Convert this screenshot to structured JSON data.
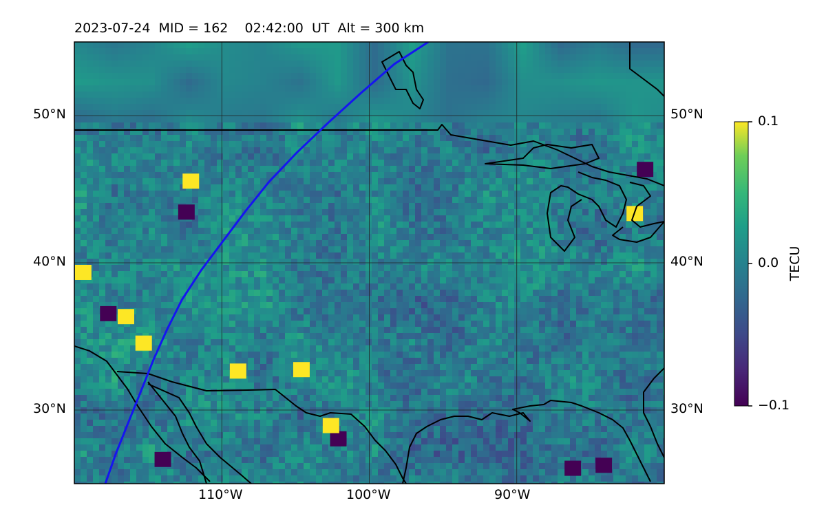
{
  "title": "2023-07-24  MID = 162    02:42:00  UT  Alt = 300 km",
  "map": {
    "projection": "PlateCarree",
    "extent": {
      "lon_min": -120,
      "lon_max": -80,
      "lat_min": 25,
      "lat_max": 55
    },
    "gridlines": true,
    "lat_ticks": [
      {
        "value": 30,
        "label": "30°N"
      },
      {
        "value": 40,
        "label": "40°N"
      },
      {
        "value": 50,
        "label": "50°N"
      }
    ],
    "lon_ticks": [
      {
        "value": -110,
        "label": "110°W"
      },
      {
        "value": -100,
        "label": "100°W"
      },
      {
        "value": -90,
        "label": "90°W"
      }
    ],
    "features": [
      "coastlines",
      "country borders",
      "Great Lakes"
    ],
    "track": {
      "color": "#1515f0",
      "points": [
        [
          -117.9,
          25
        ],
        [
          -117.2,
          27
        ],
        [
          -116.4,
          29
        ],
        [
          -115.4,
          31.5
        ],
        [
          -114.6,
          33.5
        ],
        [
          -113.7,
          35.5
        ],
        [
          -112.7,
          37.5
        ],
        [
          -111.4,
          39.5
        ],
        [
          -109.9,
          41.5
        ],
        [
          -108.4,
          43.5
        ],
        [
          -106.8,
          45.5
        ],
        [
          -104.9,
          47.5
        ],
        [
          -102.8,
          49.5
        ],
        [
          -100.6,
          51.5
        ],
        [
          -98.3,
          53.5
        ],
        [
          -96.0,
          55
        ]
      ]
    }
  },
  "colorbar": {
    "label": "TECU",
    "colormap": "viridis",
    "min": -0.1,
    "max": 0.1,
    "ticks": [
      {
        "value": 0.1,
        "label": "0.1"
      },
      {
        "value": 0.0,
        "label": "0.0"
      },
      {
        "value": -0.1,
        "label": "−0.1"
      }
    ]
  },
  "features": {
    "hotspots": [
      {
        "lon": -117.7,
        "lat": 36.5,
        "value": -0.1
      },
      {
        "lon": -116.5,
        "lat": 36.3,
        "value": 0.1
      },
      {
        "lon": -114.0,
        "lat": 26.6,
        "value": -0.1
      },
      {
        "lon": -115.3,
        "lat": 34.5,
        "value": 0.1
      },
      {
        "lon": -112.1,
        "lat": 45.5,
        "value": 0.1
      },
      {
        "lon": -112.4,
        "lat": 43.4,
        "value": -0.1
      },
      {
        "lon": -108.9,
        "lat": 32.6,
        "value": 0.1
      },
      {
        "lon": -104.6,
        "lat": 32.7,
        "value": 0.1
      },
      {
        "lon": -102.1,
        "lat": 28.0,
        "value": -0.1
      },
      {
        "lon": -102.6,
        "lat": 28.9,
        "value": 0.1
      },
      {
        "lon": -82.0,
        "lat": 43.3,
        "value": 0.1
      },
      {
        "lon": -81.3,
        "lat": 46.3,
        "value": -0.1
      },
      {
        "lon": -84.1,
        "lat": 26.2,
        "value": -0.1
      },
      {
        "lon": -86.2,
        "lat": 26.0,
        "value": -0.1
      },
      {
        "lon": -119.4,
        "lat": 39.3,
        "value": 0.1
      }
    ]
  }
}
